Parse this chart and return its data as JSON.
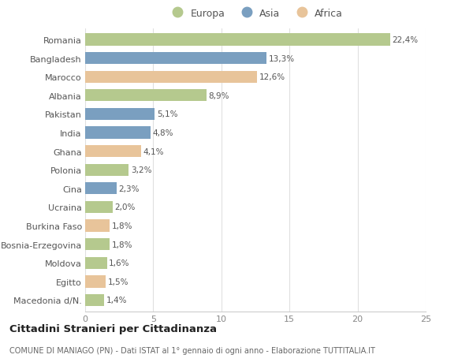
{
  "countries": [
    "Romania",
    "Bangladesh",
    "Marocco",
    "Albania",
    "Pakistan",
    "India",
    "Ghana",
    "Polonia",
    "Cina",
    "Ucraina",
    "Burkina Faso",
    "Bosnia-Erzegovina",
    "Moldova",
    "Egitto",
    "Macedonia d/N."
  ],
  "values": [
    22.4,
    13.3,
    12.6,
    8.9,
    5.1,
    4.8,
    4.1,
    3.2,
    2.3,
    2.0,
    1.8,
    1.8,
    1.6,
    1.5,
    1.4
  ],
  "labels": [
    "22,4%",
    "13,3%",
    "12,6%",
    "8,9%",
    "5,1%",
    "4,8%",
    "4,1%",
    "3,2%",
    "2,3%",
    "2,0%",
    "1,8%",
    "1,8%",
    "1,6%",
    "1,5%",
    "1,4%"
  ],
  "continents": [
    "Europa",
    "Asia",
    "Africa",
    "Europa",
    "Asia",
    "Asia",
    "Africa",
    "Europa",
    "Asia",
    "Europa",
    "Africa",
    "Europa",
    "Europa",
    "Africa",
    "Europa"
  ],
  "colors": {
    "Europa": "#b5c98e",
    "Asia": "#7a9fc0",
    "Africa": "#e8c49a"
  },
  "title": "Cittadini Stranieri per Cittadinanza",
  "subtitle": "COMUNE DI MANIAGO (PN) - Dati ISTAT al 1° gennaio di ogni anno - Elaborazione TUTTITALIA.IT",
  "xlim": [
    0,
    25
  ],
  "xticks": [
    0,
    5,
    10,
    15,
    20,
    25
  ],
  "background_color": "#ffffff",
  "bar_height": 0.65,
  "grid_color": "#e0e0e0"
}
